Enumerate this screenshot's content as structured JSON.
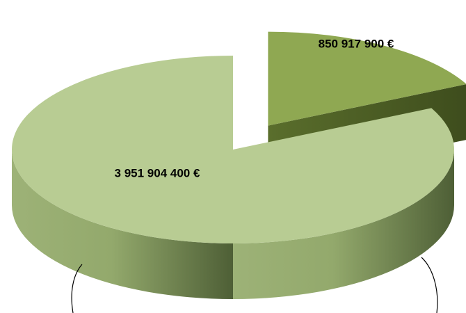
{
  "chart_data": {
    "type": "pie",
    "values": [
      850917900,
      3951904400
    ],
    "value_labels": [
      "850 917 900 €",
      "3 951 904 400 €"
    ],
    "colors": [
      "#8fa852",
      "#b8cc93"
    ]
  }
}
